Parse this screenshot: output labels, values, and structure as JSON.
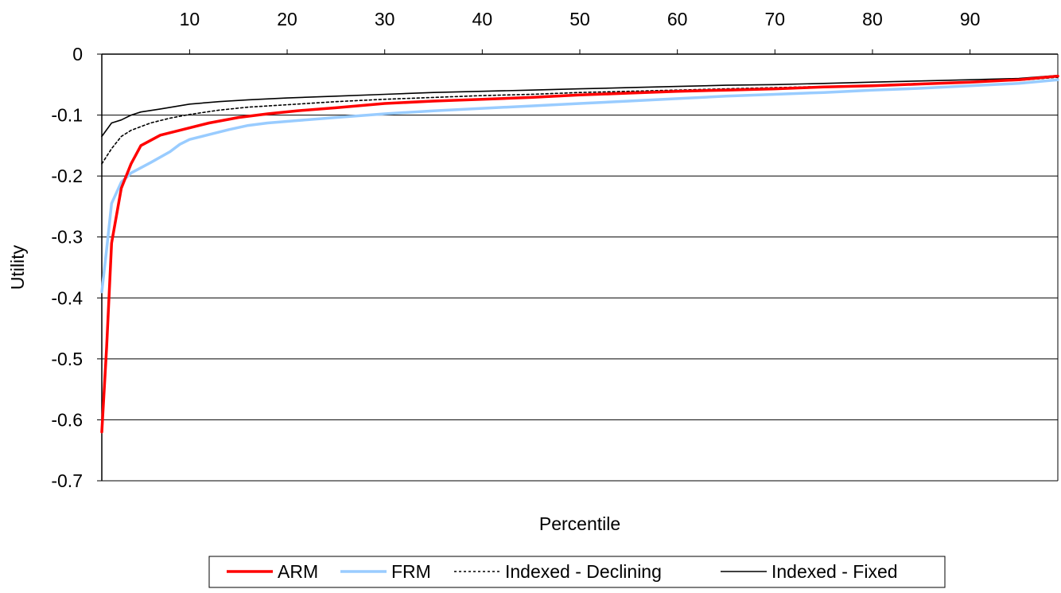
{
  "chart_data": {
    "type": "line",
    "title": "",
    "xlabel": "Percentile",
    "ylabel": "Utility",
    "xlim": [
      1,
      99
    ],
    "ylim": [
      -0.7,
      0
    ],
    "x_ticks": [
      "10",
      "20",
      "30",
      "40",
      "50",
      "60",
      "70",
      "80",
      "90"
    ],
    "x_tick_values": [
      10,
      20,
      30,
      40,
      50,
      60,
      70,
      80,
      90
    ],
    "y_ticks": [
      "0",
      "-0.1",
      "-0.2",
      "-0.3",
      "-0.4",
      "-0.5",
      "-0.6",
      "-0.7"
    ],
    "y_tick_values": [
      0,
      -0.1,
      -0.2,
      -0.3,
      -0.4,
      -0.5,
      -0.6,
      -0.7
    ],
    "x_axis_position": "top",
    "grid": "horizontal",
    "legend_position": "bottom",
    "series": [
      {
        "name": "ARM",
        "color": "#ff0000",
        "style": "solid-thick",
        "points": [
          [
            1,
            -0.62
          ],
          [
            1.5,
            -0.48
          ],
          [
            2,
            -0.31
          ],
          [
            3,
            -0.22
          ],
          [
            4,
            -0.18
          ],
          [
            5,
            -0.15
          ],
          [
            7,
            -0.133
          ],
          [
            9,
            -0.125
          ],
          [
            12,
            -0.113
          ],
          [
            15,
            -0.104
          ],
          [
            18,
            -0.098
          ],
          [
            21,
            -0.093
          ],
          [
            25,
            -0.088
          ],
          [
            30,
            -0.081
          ],
          [
            35,
            -0.077
          ],
          [
            40,
            -0.074
          ],
          [
            45,
            -0.071
          ],
          [
            50,
            -0.067
          ],
          [
            55,
            -0.064
          ],
          [
            60,
            -0.061
          ],
          [
            65,
            -0.059
          ],
          [
            70,
            -0.057
          ],
          [
            75,
            -0.054
          ],
          [
            80,
            -0.052
          ],
          [
            85,
            -0.049
          ],
          [
            90,
            -0.046
          ],
          [
            95,
            -0.042
          ],
          [
            99,
            -0.036
          ]
        ]
      },
      {
        "name": "FRM",
        "color": "#99ccff",
        "style": "solid-thick",
        "points": [
          [
            1,
            -0.39
          ],
          [
            1.5,
            -0.32
          ],
          [
            2,
            -0.245
          ],
          [
            3,
            -0.21
          ],
          [
            4,
            -0.195
          ],
          [
            6,
            -0.178
          ],
          [
            8,
            -0.16
          ],
          [
            9,
            -0.148
          ],
          [
            10,
            -0.14
          ],
          [
            12,
            -0.132
          ],
          [
            14,
            -0.124
          ],
          [
            16,
            -0.117
          ],
          [
            18,
            -0.113
          ],
          [
            21,
            -0.109
          ],
          [
            25,
            -0.104
          ],
          [
            30,
            -0.098
          ],
          [
            35,
            -0.093
          ],
          [
            40,
            -0.089
          ],
          [
            45,
            -0.085
          ],
          [
            50,
            -0.081
          ],
          [
            55,
            -0.077
          ],
          [
            60,
            -0.073
          ],
          [
            65,
            -0.069
          ],
          [
            70,
            -0.066
          ],
          [
            75,
            -0.063
          ],
          [
            80,
            -0.059
          ],
          [
            85,
            -0.056
          ],
          [
            90,
            -0.052
          ],
          [
            95,
            -0.048
          ],
          [
            99,
            -0.042
          ]
        ]
      },
      {
        "name": "Indexed - Declining",
        "color": "#000000",
        "style": "dotted",
        "points": [
          [
            1,
            -0.18
          ],
          [
            2,
            -0.155
          ],
          [
            3,
            -0.135
          ],
          [
            4,
            -0.125
          ],
          [
            6,
            -0.113
          ],
          [
            8,
            -0.105
          ],
          [
            10,
            -0.099
          ],
          [
            13,
            -0.092
          ],
          [
            16,
            -0.087
          ],
          [
            20,
            -0.083
          ],
          [
            25,
            -0.078
          ],
          [
            30,
            -0.074
          ],
          [
            35,
            -0.071
          ],
          [
            40,
            -0.068
          ],
          [
            45,
            -0.066
          ],
          [
            50,
            -0.063
          ],
          [
            55,
            -0.061
          ],
          [
            60,
            -0.059
          ],
          [
            65,
            -0.057
          ],
          [
            70,
            -0.055
          ],
          [
            75,
            -0.053
          ],
          [
            80,
            -0.051
          ],
          [
            85,
            -0.048
          ],
          [
            90,
            -0.046
          ],
          [
            95,
            -0.043
          ],
          [
            99,
            -0.038
          ]
        ]
      },
      {
        "name": "Indexed - Fixed",
        "color": "#000000",
        "style": "solid-thin",
        "points": [
          [
            1,
            -0.135
          ],
          [
            2,
            -0.113
          ],
          [
            3,
            -0.108
          ],
          [
            4,
            -0.1
          ],
          [
            5,
            -0.095
          ],
          [
            7,
            -0.09
          ],
          [
            10,
            -0.082
          ],
          [
            13,
            -0.078
          ],
          [
            16,
            -0.075
          ],
          [
            20,
            -0.072
          ],
          [
            25,
            -0.069
          ],
          [
            30,
            -0.066
          ],
          [
            35,
            -0.063
          ],
          [
            40,
            -0.061
          ],
          [
            45,
            -0.059
          ],
          [
            50,
            -0.057
          ],
          [
            55,
            -0.055
          ],
          [
            60,
            -0.053
          ],
          [
            65,
            -0.051
          ],
          [
            70,
            -0.05
          ],
          [
            75,
            -0.048
          ],
          [
            80,
            -0.046
          ],
          [
            85,
            -0.044
          ],
          [
            90,
            -0.042
          ],
          [
            95,
            -0.04
          ],
          [
            99,
            -0.035
          ]
        ]
      }
    ]
  }
}
